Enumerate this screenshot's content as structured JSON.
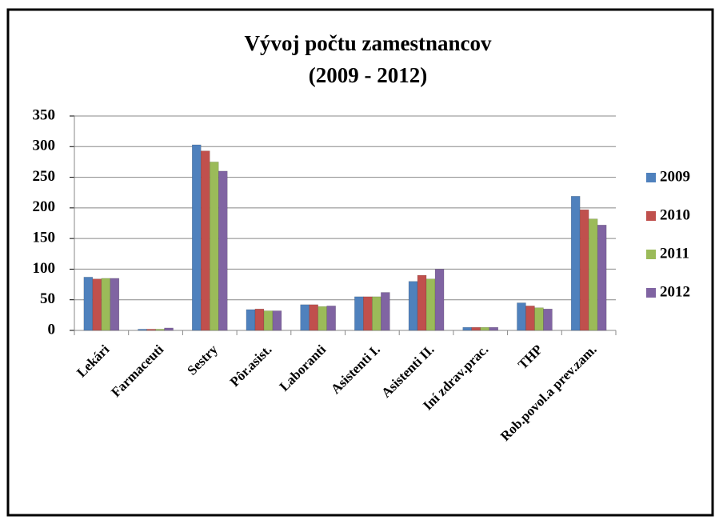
{
  "chart_data": {
    "type": "bar",
    "title": "Vývoj počtu zamestnancov",
    "subtitle": "(2009 - 2012)",
    "categories": [
      "Lekári",
      "Farmaceuti",
      "Sestry",
      "Pôr.asist.",
      "Laboranti",
      "Asistenti I.",
      "Asistenti II.",
      "Iní zdrav.prac.",
      "THP",
      "Rob.povol.a prev.zam."
    ],
    "series": [
      {
        "name": "2009",
        "color": "#4f81bd",
        "values": [
          87,
          2,
          303,
          34,
          42,
          55,
          80,
          5,
          45,
          219
        ]
      },
      {
        "name": "2010",
        "color": "#c0504d",
        "values": [
          84,
          2,
          293,
          35,
          42,
          55,
          90,
          5,
          40,
          197
        ]
      },
      {
        "name": "2011",
        "color": "#9bbb59",
        "values": [
          85,
          2,
          275,
          32,
          39,
          55,
          84,
          5,
          37,
          182
        ]
      },
      {
        "name": "2012",
        "color": "#8064a2",
        "values": [
          85,
          4,
          260,
          32,
          40,
          62,
          100,
          5,
          35,
          172
        ]
      }
    ],
    "ylim": [
      0,
      350
    ],
    "yticks": [
      0,
      50,
      100,
      150,
      200,
      250,
      300,
      350
    ],
    "grid": true,
    "legend": "right"
  }
}
